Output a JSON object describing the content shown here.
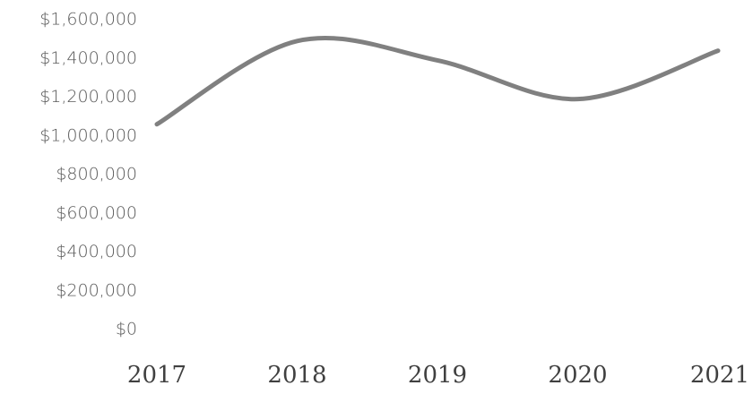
{
  "chart_data": {
    "type": "line",
    "x": [
      "2017",
      "2018",
      "2019",
      "2020",
      "2021"
    ],
    "series": [
      {
        "values": [
          1060000,
          1490000,
          1390000,
          1190000,
          1440000
        ],
        "color": "#808080",
        "smooth": true
      }
    ],
    "ylim": [
      0,
      1600000
    ],
    "yticks": [
      0,
      200000,
      400000,
      600000,
      800000,
      1000000,
      1200000,
      1400000,
      1600000
    ],
    "ytick_labels": [
      "$0",
      "$200,000",
      "$400,000",
      "$600,000",
      "$800,000",
      "$1,000,000",
      "$1,200,000",
      "$1,400,000",
      "$1,600,000"
    ],
    "title": "",
    "xlabel": "",
    "ylabel": "",
    "grid": false,
    "legend": "none"
  }
}
